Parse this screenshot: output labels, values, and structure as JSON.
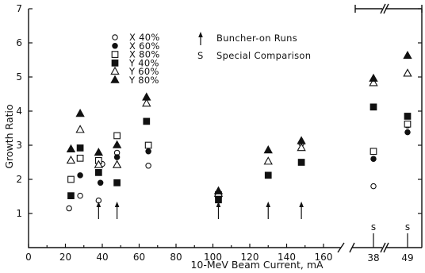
{
  "chart_data": {
    "type": "scatter",
    "xlabel": "10-MeV Beam Current, mA",
    "ylabel": "Growth Ratio",
    "xlim": [
      0,
      170
    ],
    "ylim": [
      0,
      7
    ],
    "x_ticks": [
      "0",
      "20",
      "40",
      "60",
      "80",
      "100",
      "120",
      "140",
      "160"
    ],
    "y_ticks": [
      "1",
      "2",
      "3",
      "4",
      "5",
      "6",
      "7"
    ],
    "grid": false,
    "legend_position": "top-center",
    "series": [
      {
        "name": "X  40%",
        "marker": "circle-open",
        "points": [
          [
            22,
            1.15
          ],
          [
            28,
            1.52
          ],
          [
            38,
            1.38
          ],
          [
            40,
            2.45
          ],
          [
            48,
            2.78
          ],
          [
            65,
            2.4
          ],
          [
            148,
            3.05
          ]
        ]
      },
      {
        "name": "X  60%",
        "marker": "circle-filled",
        "points": [
          [
            23,
            1.52
          ],
          [
            28,
            2.12
          ],
          [
            39,
            1.9
          ],
          [
            48,
            2.65
          ],
          [
            65,
            2.82
          ],
          [
            103,
            1.5
          ]
        ]
      },
      {
        "name": "X  80%",
        "marker": "square-open",
        "points": [
          [
            23,
            2.0
          ],
          [
            28,
            2.62
          ],
          [
            38,
            2.55
          ],
          [
            48,
            3.28
          ],
          [
            65,
            3.0
          ],
          [
            103,
            1.55
          ]
        ]
      },
      {
        "name": "Y  40%",
        "marker": "square-filled",
        "points": [
          [
            23,
            1.52
          ],
          [
            28,
            2.92
          ],
          [
            38,
            2.2
          ],
          [
            48,
            1.9
          ],
          [
            64,
            3.7
          ],
          [
            103,
            1.4
          ],
          [
            130,
            2.12
          ],
          [
            148,
            2.5
          ]
        ]
      },
      {
        "name": "Y  60%",
        "marker": "triangle-open",
        "points": [
          [
            23,
            2.55
          ],
          [
            28,
            3.45
          ],
          [
            38,
            2.42
          ],
          [
            48,
            2.42
          ],
          [
            64,
            4.22
          ],
          [
            103,
            1.58
          ],
          [
            130,
            2.52
          ],
          [
            148,
            2.92
          ]
        ]
      },
      {
        "name": "Y  80%",
        "marker": "triangle-filled",
        "points": [
          [
            23,
            2.88
          ],
          [
            28,
            3.92
          ],
          [
            38,
            2.78
          ],
          [
            48,
            3.0
          ],
          [
            64,
            4.4
          ],
          [
            103,
            1.65
          ],
          [
            130,
            2.85
          ],
          [
            148,
            3.12
          ]
        ]
      }
    ],
    "buncher_on_runs_x": [
      38,
      48,
      103,
      130,
      148
    ],
    "special_comparison": [
      {
        "label": "38",
        "points": {
          "X  40%": 1.8,
          "X  60%": 2.6,
          "X  80%": 2.82,
          "Y  40%": 4.12,
          "Y  60%": 4.82,
          "Y  80%": 4.95
        }
      },
      {
        "label": "49",
        "points": {
          "X  40%": 3.58,
          "X  60%": 3.38,
          "X  80%": 3.62,
          "Y  40%": 3.85,
          "Y  60%": 5.1,
          "Y  80%": 5.62
        }
      }
    ],
    "annotations": {
      "arrow_legend": "Buncher-on Runs",
      "s_symbol": "S",
      "s_legend": "Special Comparison",
      "s_marker": "s"
    }
  }
}
